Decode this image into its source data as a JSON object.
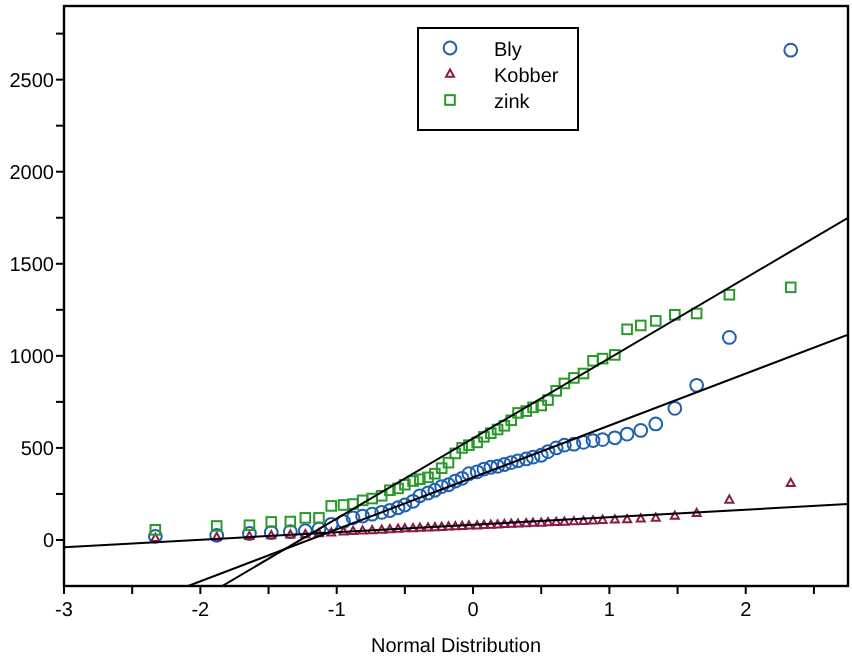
{
  "chart_data": {
    "type": "scatter",
    "xlabel": "Normal Distribution",
    "xlim": [
      -3,
      2.75
    ],
    "ylim": [
      -250,
      2900
    ],
    "xticks": [
      -3,
      {
        "value": -2.5,
        "label": null
      },
      -2,
      {
        "value": -1.5,
        "label": null
      },
      -1,
      {
        "value": -0.5,
        "label": null
      },
      0,
      {
        "value": 0.5,
        "label": null
      },
      1,
      {
        "value": 1.5,
        "label": null
      },
      2,
      {
        "value": 2.5,
        "label": null
      }
    ],
    "yticks": [
      0,
      {
        "value": 250,
        "label": null
      },
      500,
      {
        "value": 750,
        "label": null
      },
      1000,
      {
        "value": 1250,
        "label": null
      },
      1500,
      {
        "value": 1750,
        "label": null
      },
      2000,
      {
        "value": 2250,
        "label": null
      },
      2500,
      {
        "value": 2750,
        "label": null
      }
    ],
    "grid": false,
    "legend": "top",
    "x": [
      -2.33,
      -1.88,
      -1.64,
      -1.48,
      -1.34,
      -1.23,
      -1.13,
      -1.04,
      -0.95,
      -0.88,
      -0.81,
      -0.74,
      -0.67,
      -0.61,
      -0.55,
      -0.5,
      -0.44,
      -0.39,
      -0.33,
      -0.28,
      -0.23,
      -0.18,
      -0.13,
      -0.08,
      -0.03,
      0.03,
      0.08,
      0.13,
      0.18,
      0.23,
      0.28,
      0.33,
      0.39,
      0.44,
      0.5,
      0.55,
      0.61,
      0.67,
      0.74,
      0.81,
      0.88,
      0.95,
      1.04,
      1.13,
      1.23,
      1.34,
      1.48,
      1.64,
      1.88,
      2.33
    ],
    "series": [
      {
        "name": "Bly",
        "color": "#2060b0",
        "marker": "circle",
        "values": [
          20,
          25,
          35,
          40,
          45,
          50,
          60,
          85,
          100,
          120,
          130,
          140,
          150,
          160,
          175,
          190,
          210,
          240,
          255,
          270,
          290,
          300,
          320,
          335,
          360,
          370,
          385,
          395,
          400,
          410,
          420,
          430,
          440,
          450,
          460,
          480,
          500,
          515,
          520,
          530,
          540,
          545,
          555,
          575,
          595,
          630,
          715,
          840,
          1100,
          2660
        ]
      },
      {
        "name": "Kobber",
        "color": "#8b1a4a",
        "marker": "triangle",
        "values": [
          10,
          15,
          20,
          25,
          28,
          30,
          35,
          40,
          45,
          48,
          50,
          52,
          55,
          57,
          60,
          62,
          63,
          65,
          67,
          68,
          70,
          72,
          73,
          75,
          77,
          78,
          80,
          82,
          83,
          85,
          87,
          88,
          90,
          92,
          93,
          95,
          97,
          98,
          100,
          102,
          105,
          108,
          110,
          112,
          115,
          120,
          130,
          145,
          218,
          308
        ]
      },
      {
        "name": "zink",
        "color": "#2a9a2a",
        "marker": "square",
        "values": [
          55,
          76,
          80,
          98,
          100,
          120,
          120,
          185,
          190,
          195,
          215,
          225,
          240,
          270,
          280,
          300,
          320,
          330,
          340,
          360,
          390,
          420,
          470,
          500,
          515,
          530,
          560,
          580,
          600,
          620,
          650,
          690,
          700,
          720,
          730,
          760,
          810,
          850,
          880,
          904,
          973,
          985,
          1005,
          1144,
          1165,
          1190,
          1223,
          1230,
          1332,
          1372
        ]
      },
      {
        "type": "line",
        "color": "#000000",
        "marker": "none",
        "x": [
          -3,
          2.75
        ],
        "values": [
          -40,
          195
        ]
      },
      {
        "type": "line",
        "color": "#000000",
        "marker": "none",
        "x": [
          -2.09,
          2.75
        ],
        "values": [
          -250,
          1115
        ]
      },
      {
        "type": "line",
        "color": "#000000",
        "marker": "none",
        "x": [
          -1.84,
          2.75
        ],
        "values": [
          -250,
          1750
        ]
      }
    ]
  }
}
